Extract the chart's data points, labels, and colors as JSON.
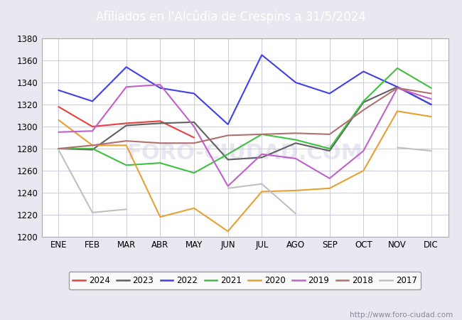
{
  "title": "Afiliados en l'Alcúdia de Crespins a 31/5/2024",
  "title_color": "white",
  "title_bg_color": "#5b9bd5",
  "months": [
    "ENE",
    "FEB",
    "MAR",
    "ABR",
    "MAY",
    "JUN",
    "JUL",
    "AGO",
    "SEP",
    "OCT",
    "NOV",
    "DIC"
  ],
  "ylim": [
    1200,
    1380
  ],
  "yticks": [
    1200,
    1220,
    1240,
    1260,
    1280,
    1300,
    1320,
    1340,
    1360,
    1380
  ],
  "watermark": "http://www.foro-ciudad.com",
  "series": {
    "2024": {
      "color": "#e84040",
      "data": [
        1318,
        1300,
        1303,
        1305,
        1290,
        null,
        null,
        null,
        null,
        null,
        null,
        null
      ]
    },
    "2023": {
      "color": "#606060",
      "data": [
        1280,
        1279,
        1301,
        1303,
        1304,
        1270,
        1272,
        1285,
        1278,
        1322,
        1336,
        1320
      ]
    },
    "2022": {
      "color": "#4040e8",
      "data": [
        1333,
        1323,
        1354,
        1335,
        1330,
        1302,
        1365,
        1340,
        1330,
        1350,
        1336,
        1320
      ]
    },
    "2021": {
      "color": "#40c040",
      "data": [
        1280,
        1280,
        1265,
        1267,
        1258,
        1275,
        1293,
        1288,
        1280,
        1323,
        1353,
        1335
      ]
    },
    "2020": {
      "color": "#e8a030",
      "data": [
        1306,
        1283,
        1283,
        1218,
        1226,
        1205,
        1241,
        1242,
        1244,
        1260,
        1314,
        1309
      ]
    },
    "2019": {
      "color": "#c060c8",
      "data": [
        1295,
        1296,
        1336,
        1338,
        1300,
        1246,
        1275,
        1271,
        1253,
        1278,
        1335,
        1325
      ]
    },
    "2018": {
      "color": "#b07070",
      "data": [
        1280,
        1283,
        1287,
        1285,
        1285,
        1292,
        1293,
        1294,
        1293,
        1315,
        1335,
        1330
      ]
    },
    "2017": {
      "color": "#c0c0c0",
      "data": [
        1279,
        1222,
        1225,
        null,
        null,
        1244,
        1248,
        1221,
        null,
        null,
        1281,
        1278
      ]
    }
  },
  "legend_order": [
    "2024",
    "2023",
    "2022",
    "2021",
    "2020",
    "2019",
    "2018",
    "2017"
  ],
  "bg_color": "#e8e8f0",
  "plot_bg_color": "white",
  "grid_color": "#ccccdd",
  "watermark_color": "#aaaacc"
}
